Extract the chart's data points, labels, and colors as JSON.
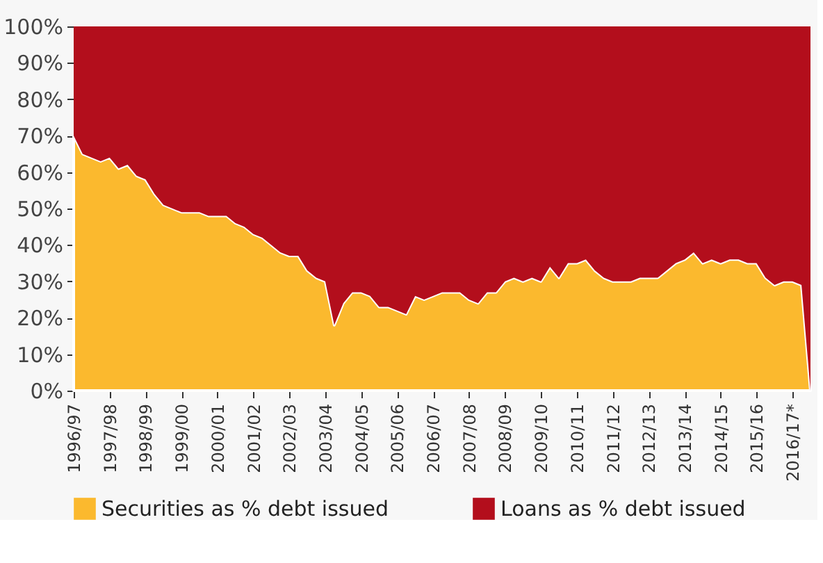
{
  "chart_data": {
    "type": "area",
    "stacked": true,
    "categories": [
      "1996/97",
      null,
      null,
      null,
      "1997/98",
      null,
      null,
      null,
      "1998/99",
      null,
      null,
      null,
      "1999/00",
      null,
      null,
      null,
      "2000/01",
      null,
      null,
      null,
      "2001/02",
      null,
      null,
      null,
      "2002/03",
      null,
      null,
      null,
      "2003/04",
      null,
      null,
      null,
      "2004/05",
      null,
      null,
      null,
      "2005/06",
      null,
      null,
      null,
      "2006/07",
      null,
      null,
      null,
      "2007/08",
      null,
      null,
      null,
      "2008/09",
      null,
      null,
      null,
      "2009/10",
      null,
      null,
      null,
      "2010/11",
      null,
      null,
      null,
      "2011/12",
      null,
      null,
      null,
      "2012/13",
      null,
      null,
      null,
      "2013/14",
      null,
      null,
      null,
      "2014/15",
      null,
      null,
      null,
      "2015/16",
      null,
      null,
      null,
      "2016/17*",
      null,
      null
    ],
    "series": [
      {
        "name": "Securities as % debt issued",
        "color": "#fbb92e",
        "values": [
          70,
          65,
          64,
          63,
          64,
          61,
          62,
          59,
          58,
          54,
          51,
          50,
          49,
          49,
          49,
          48,
          48,
          48,
          46,
          45,
          43,
          42,
          40,
          38,
          37,
          37,
          33,
          31,
          30,
          18,
          24,
          27,
          27,
          26,
          23,
          23,
          22,
          21,
          26,
          25,
          26,
          27,
          27,
          27,
          25,
          24,
          27,
          27,
          30,
          31,
          30,
          31,
          30,
          34,
          31,
          35,
          35,
          36,
          33,
          31,
          30,
          30,
          30,
          31,
          31,
          31,
          33,
          35,
          36,
          38,
          35,
          36,
          35,
          36,
          36,
          35,
          35,
          31,
          29,
          30,
          30,
          29,
          0
        ]
      },
      {
        "name": "Loans as % debt issued",
        "color": "#b30e1c",
        "values": [
          30,
          35,
          36,
          37,
          36,
          39,
          38,
          41,
          42,
          46,
          49,
          50,
          51,
          51,
          51,
          52,
          52,
          52,
          54,
          55,
          57,
          58,
          60,
          62,
          63,
          63,
          67,
          69,
          70,
          82,
          76,
          73,
          73,
          74,
          77,
          77,
          78,
          79,
          74,
          75,
          74,
          73,
          73,
          73,
          75,
          76,
          73,
          73,
          70,
          69,
          70,
          69,
          70,
          66,
          69,
          65,
          65,
          64,
          67,
          69,
          70,
          70,
          70,
          69,
          69,
          69,
          67,
          65,
          64,
          62,
          65,
          64,
          65,
          64,
          64,
          65,
          65,
          69,
          71,
          70,
          70,
          71,
          100
        ]
      }
    ],
    "ylim": [
      0,
      100
    ],
    "yticks": [
      {
        "value": 0,
        "label": "0%"
      },
      {
        "value": 10,
        "label": "10%"
      },
      {
        "value": 20,
        "label": "20%"
      },
      {
        "value": 30,
        "label": "30%"
      },
      {
        "value": 40,
        "label": "40%"
      },
      {
        "value": 50,
        "label": "50%"
      },
      {
        "value": 60,
        "label": "60%"
      },
      {
        "value": 70,
        "label": "70%"
      },
      {
        "value": 80,
        "label": "80%"
      },
      {
        "value": 90,
        "label": "90%"
      },
      {
        "value": 100,
        "label": "100%"
      }
    ],
    "legend": "bottom"
  }
}
